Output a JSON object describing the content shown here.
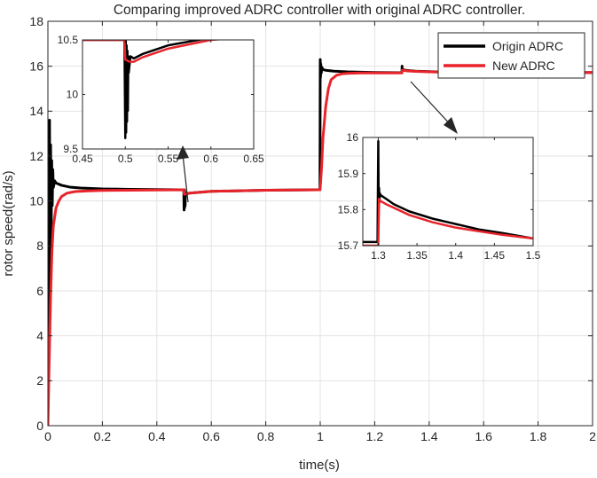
{
  "chart_data": [
    {
      "id": "main",
      "type": "line",
      "title": "Comparing improved ADRC controller with original ADRC controller.",
      "xlabel": "time(s)",
      "ylabel": "rotor speed(rad/s)",
      "xlim": [
        0,
        2
      ],
      "ylim": [
        0,
        18
      ],
      "xticks": [
        0,
        0.2,
        0.4,
        0.6,
        0.8,
        1,
        1.2,
        1.4,
        1.6,
        1.8,
        2
      ],
      "xtick_labels": [
        "0",
        "0.2",
        "0.4",
        "0.6",
        "0.8",
        "1",
        "1.2",
        "1.4",
        "1.6",
        "1.8",
        "2"
      ],
      "yticks": [
        0,
        2,
        4,
        6,
        8,
        10,
        12,
        14,
        16,
        18
      ],
      "ytick_labels": [
        "0",
        "2",
        "4",
        "6",
        "8",
        "10",
        "12",
        "14",
        "16",
        "18"
      ],
      "grid": true,
      "legend_position": "top-right",
      "series": [
        {
          "name": "Origin ADRC",
          "color": "#000000",
          "x": [
            0,
            0.003,
            0.006,
            0.008,
            0.01,
            0.012,
            0.014,
            0.016,
            0.018,
            0.02,
            0.025,
            0.03,
            0.05,
            0.08,
            0.12,
            0.2,
            0.3,
            0.4,
            0.49,
            0.499,
            0.5,
            0.501,
            0.502,
            0.503,
            0.504,
            0.505,
            0.51,
            0.52,
            0.6,
            0.8,
            0.99,
            0.999,
            1.0,
            1.001,
            1.002,
            1.004,
            1.006,
            1.01,
            1.02,
            1.05,
            1.1,
            1.2,
            1.3,
            1.3005,
            1.301,
            1.302,
            1.304,
            1.31,
            1.32,
            1.35,
            1.4,
            1.5,
            1.6,
            1.8,
            2.0
          ],
          "y": [
            0,
            8,
            13.6,
            6,
            12.5,
            8.5,
            11.8,
            9.8,
            11.4,
            10.6,
            10.9,
            10.8,
            10.7,
            10.62,
            10.58,
            10.54,
            10.52,
            10.51,
            10.5,
            10.5,
            9.6,
            10.5,
            9.7,
            10.4,
            9.8,
            10.3,
            10.32,
            10.35,
            10.43,
            10.48,
            10.5,
            10.5,
            16.3,
            15.5,
            16.1,
            15.7,
            15.95,
            15.85,
            15.82,
            15.78,
            15.75,
            15.72,
            15.71,
            16.0,
            15.82,
            15.86,
            15.84,
            15.83,
            15.81,
            15.78,
            15.76,
            15.72,
            15.72,
            15.72,
            15.72
          ]
        },
        {
          "name": "New ADRC",
          "color": "#e8242a",
          "x": [
            0,
            0.005,
            0.01,
            0.015,
            0.02,
            0.03,
            0.04,
            0.05,
            0.07,
            0.1,
            0.15,
            0.2,
            0.3,
            0.4,
            0.499,
            0.5,
            0.501,
            0.51,
            0.52,
            0.6,
            0.8,
            0.999,
            1.0,
            1.005,
            1.01,
            1.02,
            1.03,
            1.04,
            1.06,
            1.08,
            1.1,
            1.15,
            1.2,
            1.299,
            1.3,
            1.301,
            1.302,
            1.31,
            1.32,
            1.35,
            1.4,
            1.5,
            1.6,
            1.8,
            2.0
          ],
          "y": [
            0,
            3,
            5.8,
            7.8,
            8.9,
            9.7,
            10.0,
            10.2,
            10.35,
            10.42,
            10.45,
            10.47,
            10.48,
            10.49,
            10.5,
            10.35,
            10.3,
            10.32,
            10.35,
            10.43,
            10.48,
            10.5,
            10.6,
            11.5,
            12.8,
            14.2,
            15.0,
            15.4,
            15.6,
            15.66,
            15.68,
            15.7,
            15.7,
            15.7,
            15.7,
            15.83,
            15.82,
            15.81,
            15.79,
            15.77,
            15.75,
            15.72,
            15.72,
            15.72,
            15.72
          ]
        }
      ]
    },
    {
      "id": "inset-1",
      "type": "line",
      "xlim": [
        0.45,
        0.65
      ],
      "ylim": [
        9.5,
        10.5
      ],
      "xticks": [
        0.45,
        0.5,
        0.55,
        0.6,
        0.65
      ],
      "xtick_labels": [
        "0.45",
        "0.5",
        "0.55",
        "0.6",
        "0.65"
      ],
      "yticks": [
        9.5,
        10,
        10.5
      ],
      "ytick_labels": [
        "9.5",
        "10",
        "10.5"
      ],
      "series": [
        {
          "name": "Origin ADRC",
          "color": "#000000",
          "x": [
            0.45,
            0.499,
            0.5,
            0.5005,
            0.501,
            0.5015,
            0.502,
            0.5025,
            0.503,
            0.5035,
            0.504,
            0.506,
            0.51,
            0.52,
            0.55,
            0.6,
            0.65
          ],
          "y": [
            10.5,
            10.5,
            9.6,
            10.5,
            9.65,
            10.45,
            9.75,
            10.4,
            9.85,
            10.35,
            10.2,
            10.35,
            10.33,
            10.37,
            10.45,
            10.52,
            10.55
          ]
        },
        {
          "name": "New ADRC",
          "color": "#e8242a",
          "x": [
            0.45,
            0.499,
            0.5,
            0.505,
            0.51,
            0.52,
            0.55,
            0.6,
            0.65
          ],
          "y": [
            10.5,
            10.5,
            10.32,
            10.3,
            10.3,
            10.34,
            10.42,
            10.5,
            10.53
          ]
        }
      ]
    },
    {
      "id": "inset-2",
      "type": "line",
      "xlim": [
        1.28,
        1.5
      ],
      "ylim": [
        15.7,
        16
      ],
      "xticks": [
        1.3,
        1.35,
        1.4,
        1.45,
        1.5
      ],
      "xtick_labels": [
        "1.3",
        "1.35",
        "1.4",
        "1.45",
        "1.5"
      ],
      "yticks": [
        15.7,
        15.8,
        15.9,
        16
      ],
      "ytick_labels": [
        "15.7",
        "15.8",
        "15.9",
        "16"
      ],
      "series": [
        {
          "name": "Origin ADRC",
          "color": "#000000",
          "x": [
            1.28,
            1.299,
            1.3,
            1.3005,
            1.301,
            1.3015,
            1.302,
            1.303,
            1.31,
            1.32,
            1.34,
            1.37,
            1.4,
            1.43,
            1.46,
            1.5
          ],
          "y": [
            15.71,
            15.71,
            15.99,
            15.8,
            15.86,
            15.82,
            15.845,
            15.84,
            15.83,
            15.815,
            15.795,
            15.775,
            15.76,
            15.745,
            15.735,
            15.72
          ]
        },
        {
          "name": "New ADRC",
          "color": "#e8242a",
          "x": [
            1.28,
            1.299,
            1.3,
            1.301,
            1.302,
            1.31,
            1.32,
            1.34,
            1.37,
            1.4,
            1.43,
            1.46,
            1.5
          ],
          "y": [
            15.7,
            15.7,
            15.7,
            15.83,
            15.825,
            15.815,
            15.805,
            15.785,
            15.765,
            15.75,
            15.74,
            15.73,
            15.72
          ]
        }
      ]
    }
  ]
}
